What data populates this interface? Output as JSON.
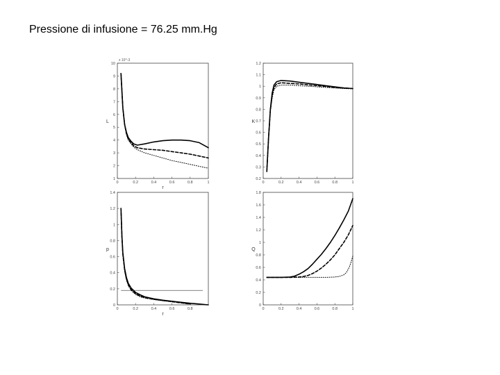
{
  "slide": {
    "title": "Pressione di infusione = 76.25 mm.Hg"
  },
  "chart_data": [
    {
      "type": "line",
      "title": "",
      "xlabel": "r",
      "ylabel": "L",
      "y_exponent_label": "x 10^-3",
      "xlim": [
        0,
        1
      ],
      "ylim": [
        1,
        10
      ],
      "xticks": [
        0,
        0.2,
        0.4,
        0.6,
        0.8,
        1
      ],
      "xtick_labels": [
        "0",
        "0.2",
        "0.4",
        "0.6",
        "0.8",
        "1"
      ],
      "yticks": [
        1,
        2,
        3,
        4,
        5,
        6,
        7,
        8,
        9,
        10
      ],
      "ytick_labels": [
        "1",
        "2",
        "3",
        "4",
        "5",
        "6",
        "7",
        "8",
        "9",
        "10"
      ],
      "grid": false,
      "series": [
        {
          "style": "solid",
          "x": [
            0.04,
            0.06,
            0.08,
            0.1,
            0.12,
            0.15,
            0.18,
            0.22,
            0.3,
            0.4,
            0.5,
            0.6,
            0.7,
            0.8,
            0.9,
            1.0
          ],
          "y": [
            9.2,
            6.5,
            5.2,
            4.6,
            4.2,
            3.9,
            3.7,
            3.6,
            3.7,
            3.85,
            3.95,
            4.0,
            4.0,
            3.95,
            3.8,
            3.4
          ]
        },
        {
          "style": "dashed",
          "x": [
            0.04,
            0.06,
            0.08,
            0.1,
            0.12,
            0.15,
            0.18,
            0.22,
            0.3,
            0.4,
            0.5,
            0.6,
            0.7,
            0.8,
            0.9,
            1.0
          ],
          "y": [
            9.2,
            6.5,
            5.2,
            4.5,
            4.1,
            3.8,
            3.55,
            3.4,
            3.3,
            3.25,
            3.2,
            3.1,
            3.0,
            2.9,
            2.75,
            2.6
          ]
        },
        {
          "style": "dotted",
          "x": [
            0.04,
            0.06,
            0.08,
            0.1,
            0.12,
            0.15,
            0.18,
            0.22,
            0.3,
            0.4,
            0.5,
            0.6,
            0.7,
            0.8,
            0.9,
            1.0
          ],
          "y": [
            9.2,
            6.5,
            5.1,
            4.4,
            4.0,
            3.7,
            3.45,
            3.25,
            3.0,
            2.8,
            2.6,
            2.4,
            2.25,
            2.1,
            1.95,
            1.8
          ]
        }
      ]
    },
    {
      "type": "line",
      "title": "",
      "xlabel": "",
      "ylabel": "K",
      "xlim": [
        0,
        1
      ],
      "ylim": [
        0.2,
        1.2
      ],
      "xticks": [
        0,
        0.2,
        0.4,
        0.6,
        0.8,
        1
      ],
      "xtick_labels": [
        "0",
        "0.2",
        "0.4",
        "0.6",
        "0.8",
        "1"
      ],
      "yticks": [
        0.2,
        0.3,
        0.4,
        0.5,
        0.6,
        0.7,
        0.8,
        0.9,
        1,
        1.1,
        1.2
      ],
      "ytick_labels": [
        "0.2",
        "0.3",
        "0.4",
        "0.5",
        "0.6",
        "0.7",
        "0.8",
        "0.9",
        "1",
        "1.1",
        "1.2"
      ],
      "grid": false,
      "series": [
        {
          "style": "solid",
          "x": [
            0.04,
            0.06,
            0.08,
            0.1,
            0.12,
            0.15,
            0.2,
            0.3,
            0.4,
            0.5,
            0.6,
            0.7,
            0.8,
            0.9,
            1.0
          ],
          "y": [
            0.26,
            0.55,
            0.8,
            0.94,
            1.01,
            1.04,
            1.05,
            1.045,
            1.035,
            1.025,
            1.015,
            1.005,
            0.995,
            0.985,
            0.98
          ]
        },
        {
          "style": "dashed",
          "x": [
            0.04,
            0.06,
            0.08,
            0.1,
            0.12,
            0.15,
            0.2,
            0.3,
            0.4,
            0.5,
            0.6,
            0.7,
            0.8,
            0.9,
            1.0
          ],
          "y": [
            0.26,
            0.55,
            0.79,
            0.92,
            0.99,
            1.02,
            1.03,
            1.025,
            1.02,
            1.012,
            1.005,
            0.998,
            0.99,
            0.985,
            0.98
          ]
        },
        {
          "style": "dotted",
          "x": [
            0.04,
            0.06,
            0.08,
            0.1,
            0.12,
            0.15,
            0.2,
            0.3,
            0.4,
            0.5,
            0.6,
            0.7,
            0.8,
            0.9,
            1.0
          ],
          "y": [
            0.26,
            0.54,
            0.78,
            0.9,
            0.97,
            1.0,
            1.01,
            1.01,
            1.005,
            1.0,
            0.995,
            0.99,
            0.985,
            0.98,
            0.978
          ]
        }
      ]
    },
    {
      "type": "line",
      "title": "",
      "xlabel": "r",
      "ylabel": "p",
      "xlim": [
        0,
        1
      ],
      "ylim": [
        0,
        1.4
      ],
      "xticks": [
        0,
        0.2,
        0.4,
        0.6,
        0.8
      ],
      "xtick_labels": [
        "0",
        "0.2",
        "0.4",
        "0.6",
        "0.8"
      ],
      "yticks": [
        0,
        0.2,
        0.4,
        0.6,
        0.8,
        1,
        1.2,
        1.4
      ],
      "ytick_labels": [
        "0",
        "0.2",
        "0.4",
        "0.6",
        "0.8",
        "1",
        "1.2",
        "1.4"
      ],
      "grid": false,
      "reference_line_y": 0.18,
      "series": [
        {
          "style": "solid",
          "x": [
            0.04,
            0.05,
            0.06,
            0.08,
            0.1,
            0.12,
            0.15,
            0.2,
            0.25,
            0.3,
            0.4,
            0.5,
            0.6,
            0.7,
            0.8,
            0.9,
            1.0
          ],
          "y": [
            1.2,
            0.85,
            0.65,
            0.45,
            0.34,
            0.27,
            0.21,
            0.155,
            0.125,
            0.1,
            0.075,
            0.058,
            0.045,
            0.032,
            0.02,
            0.01,
            0.0
          ]
        },
        {
          "style": "dashed",
          "x": [
            0.04,
            0.05,
            0.06,
            0.08,
            0.1,
            0.12,
            0.15,
            0.2,
            0.25,
            0.3,
            0.4,
            0.5,
            0.6,
            0.7,
            0.8
          ],
          "y": [
            1.2,
            0.84,
            0.63,
            0.43,
            0.32,
            0.25,
            0.19,
            0.14,
            0.11,
            0.09,
            0.07,
            0.055,
            0.04,
            0.025,
            0.01
          ]
        },
        {
          "style": "dotted",
          "x": [
            0.04,
            0.05,
            0.06,
            0.08,
            0.1,
            0.12,
            0.15,
            0.2,
            0.25,
            0.3,
            0.4,
            0.5,
            0.6,
            0.7,
            0.8
          ],
          "y": [
            1.2,
            0.83,
            0.62,
            0.42,
            0.31,
            0.24,
            0.18,
            0.13,
            0.1,
            0.085,
            0.065,
            0.05,
            0.038,
            0.025,
            0.012
          ]
        }
      ]
    },
    {
      "type": "line",
      "title": "",
      "xlabel": "",
      "ylabel": "Q",
      "xlim": [
        0,
        1
      ],
      "ylim": [
        0,
        1.8
      ],
      "xticks": [
        0,
        0.2,
        0.4,
        0.6,
        0.8,
        1
      ],
      "xtick_labels": [
        "0",
        "0.2",
        "0.4",
        "0.6",
        "0.8",
        "1"
      ],
      "yticks": [
        0,
        0.2,
        0.4,
        0.6,
        0.8,
        1,
        1.2,
        1.4,
        1.6,
        1.8
      ],
      "ytick_labels": [
        "0",
        "0.2",
        "0.4",
        "0.6",
        "0.8",
        "1",
        "1.2",
        "1.4",
        "1.6",
        "1.8"
      ],
      "grid": false,
      "series": [
        {
          "style": "solid",
          "x": [
            0.04,
            0.2,
            0.3,
            0.35,
            0.4,
            0.45,
            0.5,
            0.55,
            0.6,
            0.65,
            0.7,
            0.75,
            0.8,
            0.85,
            0.9,
            0.95,
            1.0
          ],
          "y": [
            0.44,
            0.44,
            0.445,
            0.46,
            0.49,
            0.53,
            0.58,
            0.65,
            0.73,
            0.81,
            0.9,
            1.0,
            1.11,
            1.23,
            1.36,
            1.5,
            1.7
          ]
        },
        {
          "style": "dashed",
          "x": [
            0.04,
            0.2,
            0.3,
            0.4,
            0.45,
            0.5,
            0.55,
            0.6,
            0.65,
            0.7,
            0.75,
            0.8,
            0.85,
            0.9,
            0.95,
            1.0
          ],
          "y": [
            0.44,
            0.44,
            0.44,
            0.445,
            0.455,
            0.47,
            0.5,
            0.54,
            0.59,
            0.65,
            0.72,
            0.8,
            0.9,
            1.0,
            1.12,
            1.27
          ]
        },
        {
          "style": "dotted",
          "x": [
            0.04,
            0.2,
            0.4,
            0.6,
            0.7,
            0.8,
            0.85,
            0.9,
            0.93,
            0.96,
            0.98,
            1.0
          ],
          "y": [
            0.44,
            0.44,
            0.44,
            0.44,
            0.44,
            0.445,
            0.455,
            0.48,
            0.52,
            0.6,
            0.68,
            0.78
          ]
        }
      ]
    }
  ]
}
